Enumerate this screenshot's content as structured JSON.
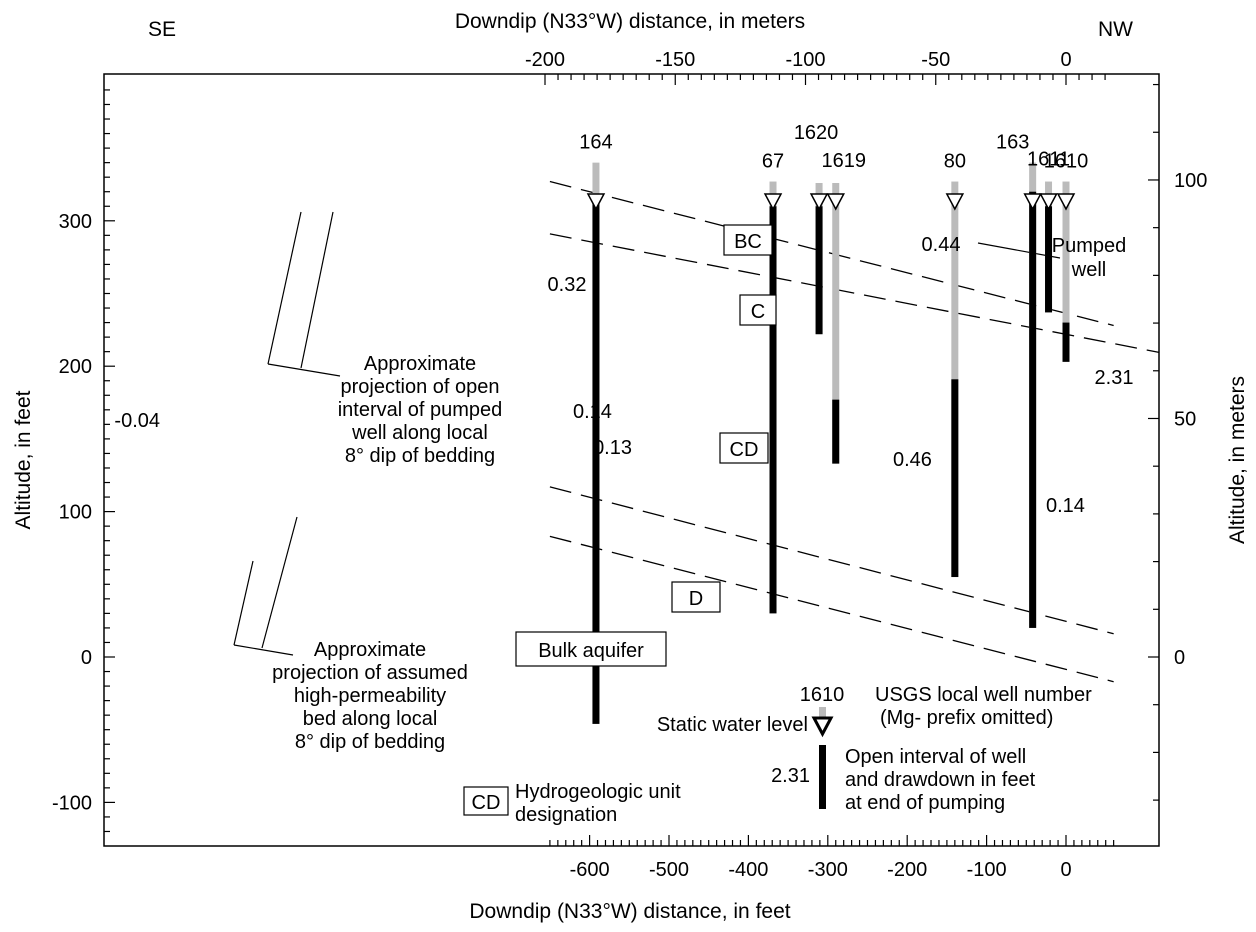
{
  "figure": {
    "top_axis_label": "Downdip (N33°W) distance,  in meters",
    "bottom_axis_label": "Downdip (N33°W) distance,  in feet",
    "left_axis_label": "Altitude,  in feet",
    "right_axis_label": "Altitude,  in meters",
    "direction_left": "SE",
    "direction_right": "NW"
  },
  "axes": {
    "bottom_feet": {
      "range": [
        -650,
        60
      ],
      "ticks": [
        "-600",
        "-500",
        "-400",
        "-300",
        "-200",
        "-100",
        "0"
      ],
      "tick_values": [
        -600,
        -500,
        -400,
        -300,
        -200,
        -100,
        0
      ]
    },
    "top_meters": {
      "ticks": [
        "-200",
        "-150",
        "-100",
        "-50",
        "0"
      ],
      "tick_values": [
        -200,
        -150,
        -100,
        -50,
        0
      ]
    },
    "left_feet": {
      "range": [
        -130,
        390
      ],
      "ticks": [
        "-100",
        "0",
        "100",
        "200",
        "300"
      ],
      "tick_values": [
        -100,
        0,
        100,
        200,
        300
      ]
    },
    "right_meters": {
      "ticks": [
        "0",
        "50",
        "100"
      ],
      "tick_values": [
        0,
        50,
        100
      ]
    }
  },
  "wells": [
    {
      "id": "164",
      "x_ft": -592,
      "casing_top": 340,
      "wl": 315,
      "open_top": 318,
      "open_bot": -46,
      "drawdown": "-0.04"
    },
    {
      "id": "67",
      "x_ft": -369,
      "casing_top": 327,
      "wl": 315,
      "open_top": 310,
      "open_bot": 30,
      "drawdown": "0.14"
    },
    {
      "id": "1620",
      "x_ft": -311,
      "casing_top": 326,
      "wl": 315,
      "open_top": 310,
      "open_bot": 222,
      "drawdown": "0.32"
    },
    {
      "id": "1619",
      "x_ft": -290,
      "casing_top": 326,
      "wl": 315,
      "open_top": 177,
      "open_bot": 133,
      "drawdown": "0.13"
    },
    {
      "id": "80",
      "x_ft": -140,
      "casing_top": 327,
      "wl": 315,
      "open_top": 191,
      "open_bot": 55,
      "drawdown": "0.46"
    },
    {
      "id": "163",
      "x_ft": -42,
      "casing_top": 340,
      "wl": 315,
      "open_top": 320,
      "open_bot": 20,
      "drawdown": "0.14"
    },
    {
      "id": "1611",
      "x_ft": -22,
      "casing_top": 327,
      "wl": 315,
      "open_top": 310,
      "open_bot": 237,
      "drawdown": "0.44"
    },
    {
      "id": "1610",
      "x_ft": 0,
      "casing_top": 327,
      "wl": 315,
      "open_top": 230,
      "open_bot": 203,
      "drawdown": "2.31"
    }
  ],
  "bed_boundaries": [
    {
      "x": [
        -650,
        60
      ],
      "y": [
        327,
        228
      ]
    },
    {
      "x": [
        -650,
        291
      ],
      "y": [
        291,
        191
      ]
    },
    {
      "x": [
        -650,
        60
      ],
      "y": [
        117,
        16
      ]
    },
    {
      "x": [
        -650,
        60
      ],
      "y": [
        83,
        -17
      ]
    }
  ],
  "units": {
    "bc": "BC",
    "c": "C",
    "cd": "CD",
    "d": "D",
    "bulk": "Bulk aquifer"
  },
  "annotations": {
    "pumped_well_1": "Pumped",
    "pumped_well_2": "well",
    "proj_open_1": "Approximate",
    "proj_open_2": "projection of open",
    "proj_open_3": "interval of pumped",
    "proj_open_4": "well along local",
    "proj_open_5": "8° dip of bedding",
    "proj_bed_1": "Approximate",
    "proj_bed_2": "projection of assumed",
    "proj_bed_3": "high-permeability",
    "proj_bed_4": "bed along local",
    "proj_bed_5": "8° dip of bedding"
  },
  "legend": {
    "well_id": "1610",
    "well_number_1": "USGS local well number",
    "well_number_2": "(Mg- prefix omitted)",
    "static_water": "Static water level",
    "drawdown_value": "2.31",
    "open_interval_1": "Open interval of well",
    "open_interval_2": "and drawdown in feet",
    "open_interval_3": "at end of pumping",
    "unit_box": "CD",
    "unit_desc_1": "Hydrogeologic unit",
    "unit_desc_2": "designation"
  },
  "colors": {
    "casing": "#bbbbbb",
    "open_interval": "#000000",
    "water_level_marker": "#ffffff"
  }
}
